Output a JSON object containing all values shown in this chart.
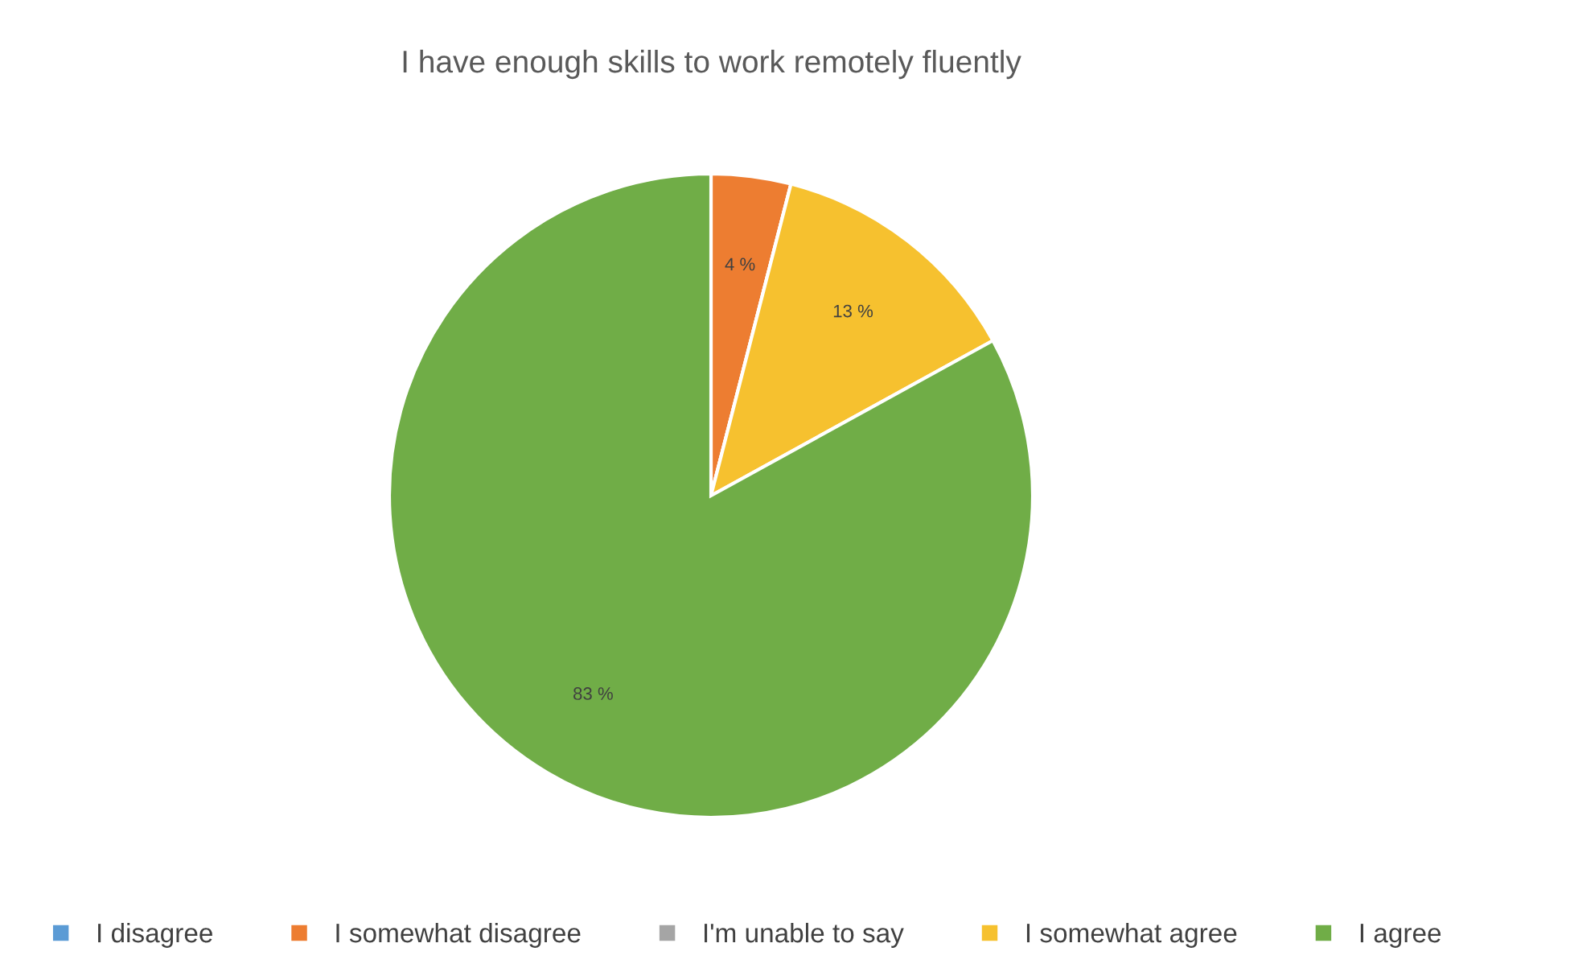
{
  "chart_data": {
    "type": "pie",
    "title": "I have enough skills to work remotely fluently",
    "categories": [
      "I disagree",
      "I somewhat disagree",
      "I'm unable to say",
      "I somewhat agree",
      "I agree"
    ],
    "values": [
      0,
      4,
      0,
      13,
      83
    ],
    "colors": [
      "#5b9bd5",
      "#ed7d31",
      "#a5a5a5",
      "#f6c12f",
      "#70ad47"
    ],
    "value_labels": [
      null,
      "4 %",
      null,
      "13 %",
      "83 %"
    ],
    "legend": "bottom"
  }
}
